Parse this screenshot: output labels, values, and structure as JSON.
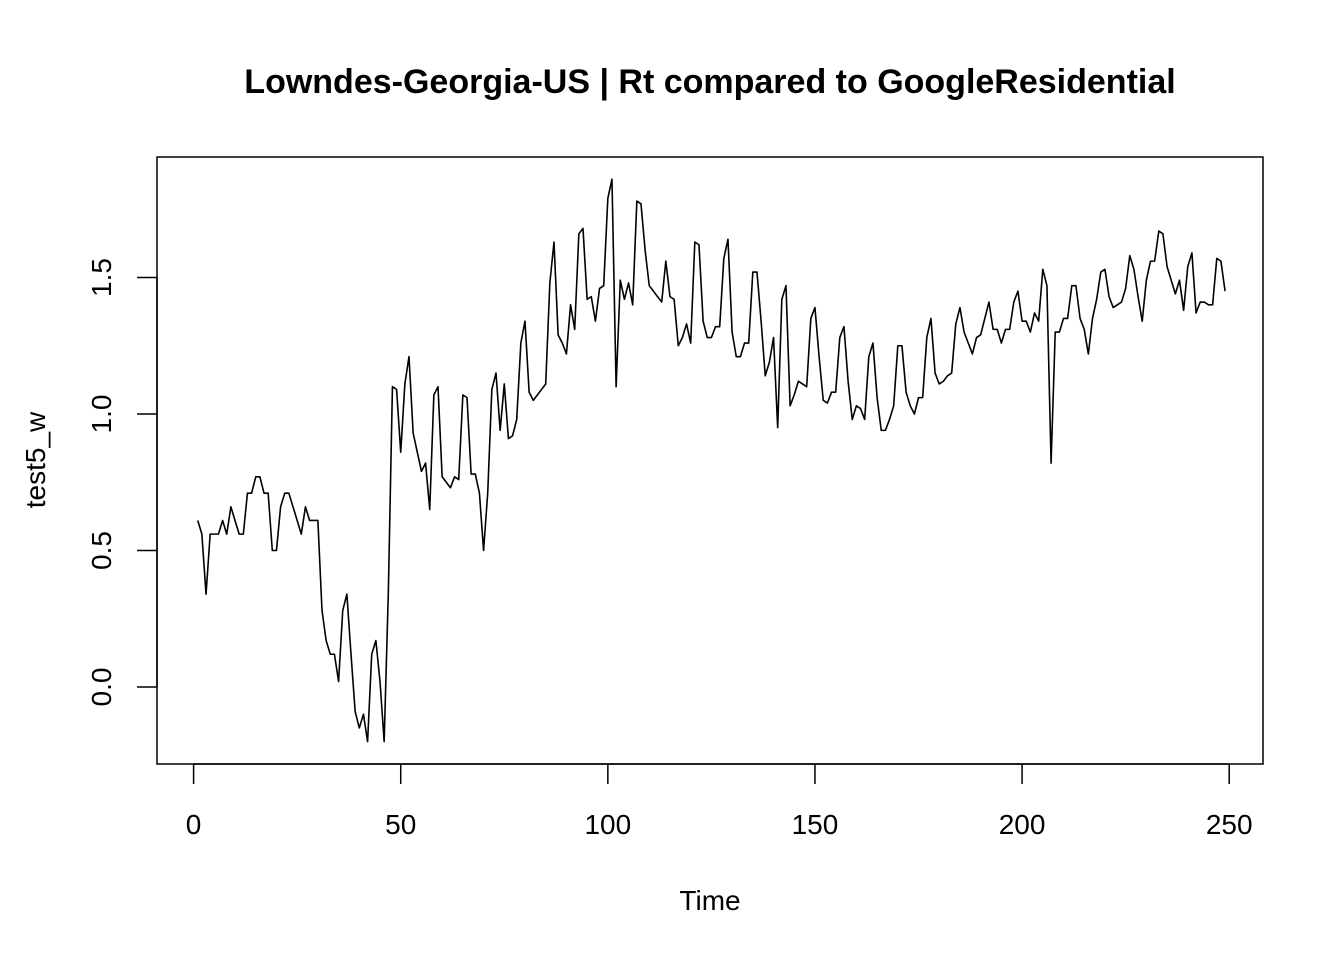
{
  "chart_data": {
    "type": "line",
    "title": "Lowndes-Georgia-US | Rt compared to GoogleResidential",
    "xlabel": "Time",
    "ylabel": "test5_w",
    "xlim": [
      1,
      248
    ],
    "ylim": [
      -0.2,
      1.86
    ],
    "x_ticks": [
      0,
      50,
      100,
      150,
      200,
      250
    ],
    "y_ticks": [
      0.0,
      0.5,
      1.0,
      1.5
    ],
    "x_tick_labels": [
      "0",
      "50",
      "100",
      "150",
      "200",
      "250"
    ],
    "y_tick_labels": [
      "0.0",
      "0.5",
      "1.0",
      "1.5"
    ],
    "grid": false,
    "line_color": "#000000",
    "series": [
      {
        "x_start": 1,
        "values": [
          0.61,
          0.56,
          0.34,
          0.56,
          0.56,
          0.56,
          0.61,
          0.56,
          0.66,
          0.61,
          0.56,
          0.56,
          0.71,
          0.71,
          0.77,
          0.77,
          0.71,
          0.71,
          0.5,
          0.5,
          0.66,
          0.71,
          0.71,
          0.66,
          0.61,
          0.56,
          0.66,
          0.61,
          0.61,
          0.61,
          0.28,
          0.17,
          0.12,
          0.12,
          0.02,
          0.28,
          0.34,
          0.12,
          -0.09,
          -0.15,
          -0.1,
          -0.2,
          0.12,
          0.17,
          0.02,
          -0.2,
          0.34,
          1.1,
          1.09,
          0.86,
          1.11,
          1.21,
          0.93,
          0.86,
          0.79,
          0.82,
          0.65,
          1.07,
          1.1,
          0.77,
          0.75,
          0.73,
          0.77,
          0.76,
          1.07,
          1.06,
          0.78,
          0.78,
          0.71,
          0.5,
          0.71,
          1.09,
          1.15,
          0.94,
          1.11,
          0.91,
          0.92,
          0.98,
          1.26,
          1.34,
          1.08,
          1.05,
          1.07,
          1.09,
          1.11,
          1.48,
          1.63,
          1.29,
          1.26,
          1.22,
          1.4,
          1.31,
          1.66,
          1.68,
          1.42,
          1.43,
          1.34,
          1.46,
          1.47,
          1.79,
          1.86,
          1.1,
          1.49,
          1.42,
          1.48,
          1.4,
          1.78,
          1.77,
          1.6,
          1.47,
          1.45,
          1.43,
          1.41,
          1.56,
          1.43,
          1.42,
          1.25,
          1.28,
          1.33,
          1.26,
          1.63,
          1.62,
          1.34,
          1.28,
          1.28,
          1.32,
          1.32,
          1.57,
          1.64,
          1.3,
          1.21,
          1.21,
          1.26,
          1.26,
          1.52,
          1.52,
          1.34,
          1.14,
          1.19,
          1.28,
          0.95,
          1.42,
          1.47,
          1.03,
          1.07,
          1.12,
          1.11,
          1.1,
          1.35,
          1.39,
          1.21,
          1.05,
          1.04,
          1.08,
          1.08,
          1.28,
          1.32,
          1.12,
          0.98,
          1.03,
          1.02,
          0.98,
          1.21,
          1.26,
          1.06,
          0.94,
          0.94,
          0.98,
          1.03,
          1.25,
          1.25,
          1.08,
          1.03,
          1.0,
          1.06,
          1.06,
          1.28,
          1.35,
          1.15,
          1.11,
          1.12,
          1.14,
          1.15,
          1.33,
          1.39,
          1.3,
          1.26,
          1.22,
          1.28,
          1.29,
          1.35,
          1.41,
          1.31,
          1.31,
          1.26,
          1.31,
          1.31,
          1.41,
          1.45,
          1.34,
          1.34,
          1.3,
          1.37,
          1.34,
          1.53,
          1.47,
          0.82,
          1.3,
          1.3,
          1.35,
          1.35,
          1.47,
          1.47,
          1.35,
          1.31,
          1.22,
          1.35,
          1.42,
          1.52,
          1.53,
          1.43,
          1.39,
          1.4,
          1.41,
          1.46,
          1.58,
          1.53,
          1.43,
          1.34,
          1.49,
          1.56,
          1.56,
          1.67,
          1.66,
          1.54,
          1.49,
          1.44,
          1.49,
          1.38,
          1.54,
          1.59,
          1.37,
          1.41,
          1.41,
          1.4,
          1.4,
          1.57,
          1.56,
          1.45
        ]
      }
    ]
  }
}
